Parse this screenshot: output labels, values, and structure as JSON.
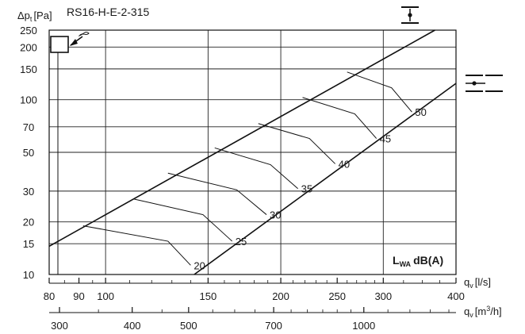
{
  "chart_data": {
    "type": "line",
    "title": "RS16-H-E-2-315",
    "ylabel": {
      "main": "Δp",
      "sub": "t",
      "unit": "[Pa]"
    },
    "xlabel_ls": {
      "main": "q",
      "sub": "v",
      "unit": "[l/s]"
    },
    "xlabel_m3h": {
      "main": "q",
      "sub": "v",
      "unit": "[m",
      "sup": "3",
      "unit_end": "/h]"
    },
    "sound_label": {
      "main": "L",
      "sub": "WA",
      "unit": "dB(A)"
    },
    "x_scale": "log",
    "y_scale": "log",
    "xlim_ls": [
      80,
      400
    ],
    "ylim": [
      10,
      250
    ],
    "y_ticks": [
      10,
      15,
      20,
      30,
      50,
      70,
      100,
      150,
      200,
      250
    ],
    "x_ticks_ls": [
      80,
      90,
      100,
      150,
      200,
      250,
      300,
      400
    ],
    "x_gridlines_ls": [
      100,
      150,
      200,
      300
    ],
    "x_ticks_m3h": [
      300,
      400,
      500,
      700,
      1000
    ],
    "x_minor_ls": [
      85,
      95,
      110,
      120,
      130,
      140,
      160,
      170,
      180,
      190,
      210,
      220,
      230,
      240,
      260,
      270,
      280,
      290,
      325,
      350,
      375
    ],
    "x_minor_m3h": [
      350,
      450,
      550,
      600,
      650,
      750,
      800,
      850,
      900,
      950,
      1100,
      1200,
      1300,
      1400
    ],
    "grid": true,
    "series": [
      {
        "x": [
          80,
          368
        ],
        "y": [
          14.5,
          250
        ]
      },
      {
        "x": [
          142,
          400
        ],
        "y": [
          10,
          124
        ]
      }
    ],
    "sound_curves": [
      {
        "label": "20",
        "x": [
          91.5,
          128,
          140
        ],
        "y": [
          19,
          15.5,
          11.3
        ]
      },
      {
        "label": "25",
        "x": [
          112,
          147,
          165
        ],
        "y": [
          27,
          22,
          15.5
        ]
      },
      {
        "label": "30",
        "x": [
          128,
          168,
          189
        ],
        "y": [
          38,
          30.5,
          22
        ]
      },
      {
        "label": "35",
        "x": [
          154,
          192,
          214
        ],
        "y": [
          53,
          42.5,
          31
        ]
      },
      {
        "label": "40",
        "x": [
          183,
          224,
          248
        ],
        "y": [
          73,
          60,
          43
        ]
      },
      {
        "label": "45",
        "x": [
          218,
          268,
          292
        ],
        "y": [
          103,
          83,
          60
        ]
      },
      {
        "label": "50",
        "x": [
          260,
          310,
          336
        ],
        "y": [
          144,
          117,
          85
        ]
      }
    ]
  }
}
